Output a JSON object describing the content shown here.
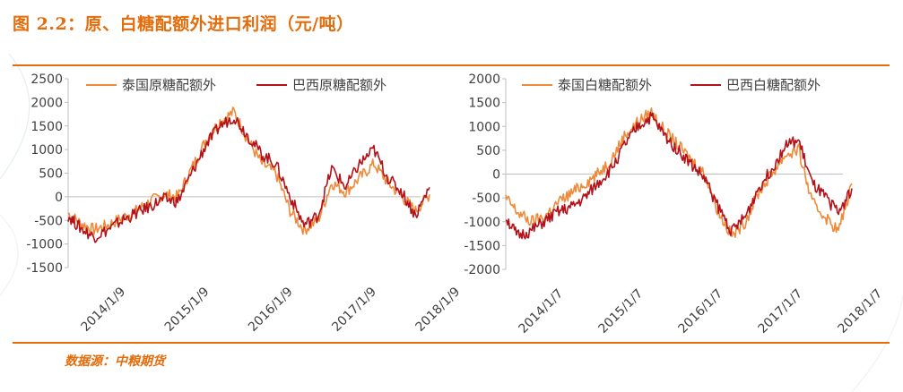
{
  "header": {
    "title": "图 2.2：原、白糖配额外进口利润（元/吨）"
  },
  "footer": {
    "source": "数据源：中粮期货"
  },
  "colors": {
    "accent": "#e46c0a",
    "series_orange": "#ee8a3a",
    "series_red": "#b4121a",
    "axis": "#bfbfbf",
    "text": "#404040"
  },
  "chart_data": [
    {
      "type": "line",
      "title": "",
      "xlabel": "",
      "ylabel": "",
      "ylim": [
        -1500,
        2500
      ],
      "yticks": [
        2500,
        2000,
        1500,
        1000,
        500,
        0,
        -500,
        -1000,
        -1500
      ],
      "xtick_labels": [
        "2014/1/9",
        "2015/1/9",
        "2016/1/9",
        "2017/1/9",
        "2018/1/9"
      ],
      "legend_position": "top",
      "grid": false,
      "series": [
        {
          "name": "泰国原糖配额外",
          "color": "#ee8a3a",
          "x": [
            "2014-01-09",
            "2014-03-01",
            "2014-05-01",
            "2014-07-01",
            "2014-09-01",
            "2014-11-01",
            "2015-01-01",
            "2015-03-01",
            "2015-05-01",
            "2015-07-01",
            "2015-09-01",
            "2015-11-01",
            "2016-01-01",
            "2016-03-01",
            "2016-05-01",
            "2016-07-01",
            "2016-09-01",
            "2016-11-01",
            "2017-01-01",
            "2017-03-01",
            "2017-05-01",
            "2017-07-01",
            "2017-09-01",
            "2017-11-01",
            "2018-01-01",
            "2018-03-01",
            "2018-05-01"
          ],
          "values": [
            -350,
            -550,
            -700,
            -600,
            -450,
            -300,
            -100,
            50,
            0,
            600,
            1200,
            1600,
            1800,
            1200,
            700,
            500,
            -300,
            -700,
            -500,
            300,
            100,
            400,
            700,
            300,
            0,
            -300,
            50
          ]
        },
        {
          "name": "巴西原糖配额外",
          "color": "#b4121a",
          "x": [
            "2014-01-09",
            "2014-03-01",
            "2014-05-01",
            "2014-07-01",
            "2014-09-01",
            "2014-11-01",
            "2015-01-01",
            "2015-03-01",
            "2015-05-01",
            "2015-07-01",
            "2015-09-01",
            "2015-11-01",
            "2016-01-01",
            "2016-03-01",
            "2016-05-01",
            "2016-07-01",
            "2016-09-01",
            "2016-11-01",
            "2017-01-01",
            "2017-03-01",
            "2017-05-01",
            "2017-07-01",
            "2017-09-01",
            "2017-11-01",
            "2018-01-01",
            "2018-03-01",
            "2018-05-01"
          ],
          "values": [
            -400,
            -650,
            -850,
            -700,
            -500,
            -350,
            -200,
            -50,
            -100,
            500,
            1100,
            1500,
            1700,
            1300,
            900,
            700,
            0,
            -600,
            -400,
            600,
            200,
            700,
            1000,
            400,
            100,
            -400,
            200
          ]
        }
      ]
    },
    {
      "type": "line",
      "title": "",
      "xlabel": "",
      "ylabel": "",
      "ylim": [
        -2000,
        2000
      ],
      "yticks": [
        2000,
        1500,
        1000,
        500,
        0,
        -500,
        -1000,
        -1500,
        -2000
      ],
      "xtick_labels": [
        "2014/1/7",
        "2015/1/7",
        "2016/1/7",
        "2017/1/7",
        "2018/1/7"
      ],
      "legend_position": "top",
      "grid": false,
      "series": [
        {
          "name": "泰国白糖配额外",
          "color": "#ee8a3a",
          "x": [
            "2014-01-07",
            "2014-03-01",
            "2014-05-01",
            "2014-07-01",
            "2014-09-01",
            "2014-11-01",
            "2015-01-01",
            "2015-03-01",
            "2015-05-01",
            "2015-07-01",
            "2015-09-01",
            "2015-11-01",
            "2016-01-01",
            "2016-03-01",
            "2016-05-01",
            "2016-07-01",
            "2016-09-01",
            "2016-11-01",
            "2017-01-01",
            "2017-03-01",
            "2017-05-01",
            "2017-07-01",
            "2017-09-01",
            "2017-11-01",
            "2018-01-01",
            "2018-03-01",
            "2018-05-01"
          ],
          "values": [
            -500,
            -800,
            -1000,
            -900,
            -600,
            -400,
            -200,
            0,
            300,
            800,
            1100,
            1300,
            900,
            600,
            300,
            0,
            -800,
            -1300,
            -1000,
            -400,
            0,
            400,
            500,
            -600,
            -900,
            -1200,
            -200
          ]
        },
        {
          "name": "巴西白糖配额外",
          "color": "#b4121a",
          "x": [
            "2014-01-07",
            "2014-03-01",
            "2014-05-01",
            "2014-07-01",
            "2014-09-01",
            "2014-11-01",
            "2015-01-01",
            "2015-03-01",
            "2015-05-01",
            "2015-07-01",
            "2015-09-01",
            "2015-11-01",
            "2016-01-01",
            "2016-03-01",
            "2016-05-01",
            "2016-07-01",
            "2016-09-01",
            "2016-11-01",
            "2017-01-01",
            "2017-03-01",
            "2017-05-01",
            "2017-07-01",
            "2017-09-01",
            "2017-11-01",
            "2018-01-01",
            "2018-03-01",
            "2018-05-01"
          ],
          "values": [
            -900,
            -1300,
            -1200,
            -1000,
            -800,
            -700,
            -500,
            -200,
            100,
            600,
            1000,
            1200,
            800,
            500,
            200,
            -100,
            -700,
            -1200,
            -900,
            -300,
            100,
            600,
            700,
            -200,
            -500,
            -800,
            -300
          ]
        }
      ]
    }
  ]
}
